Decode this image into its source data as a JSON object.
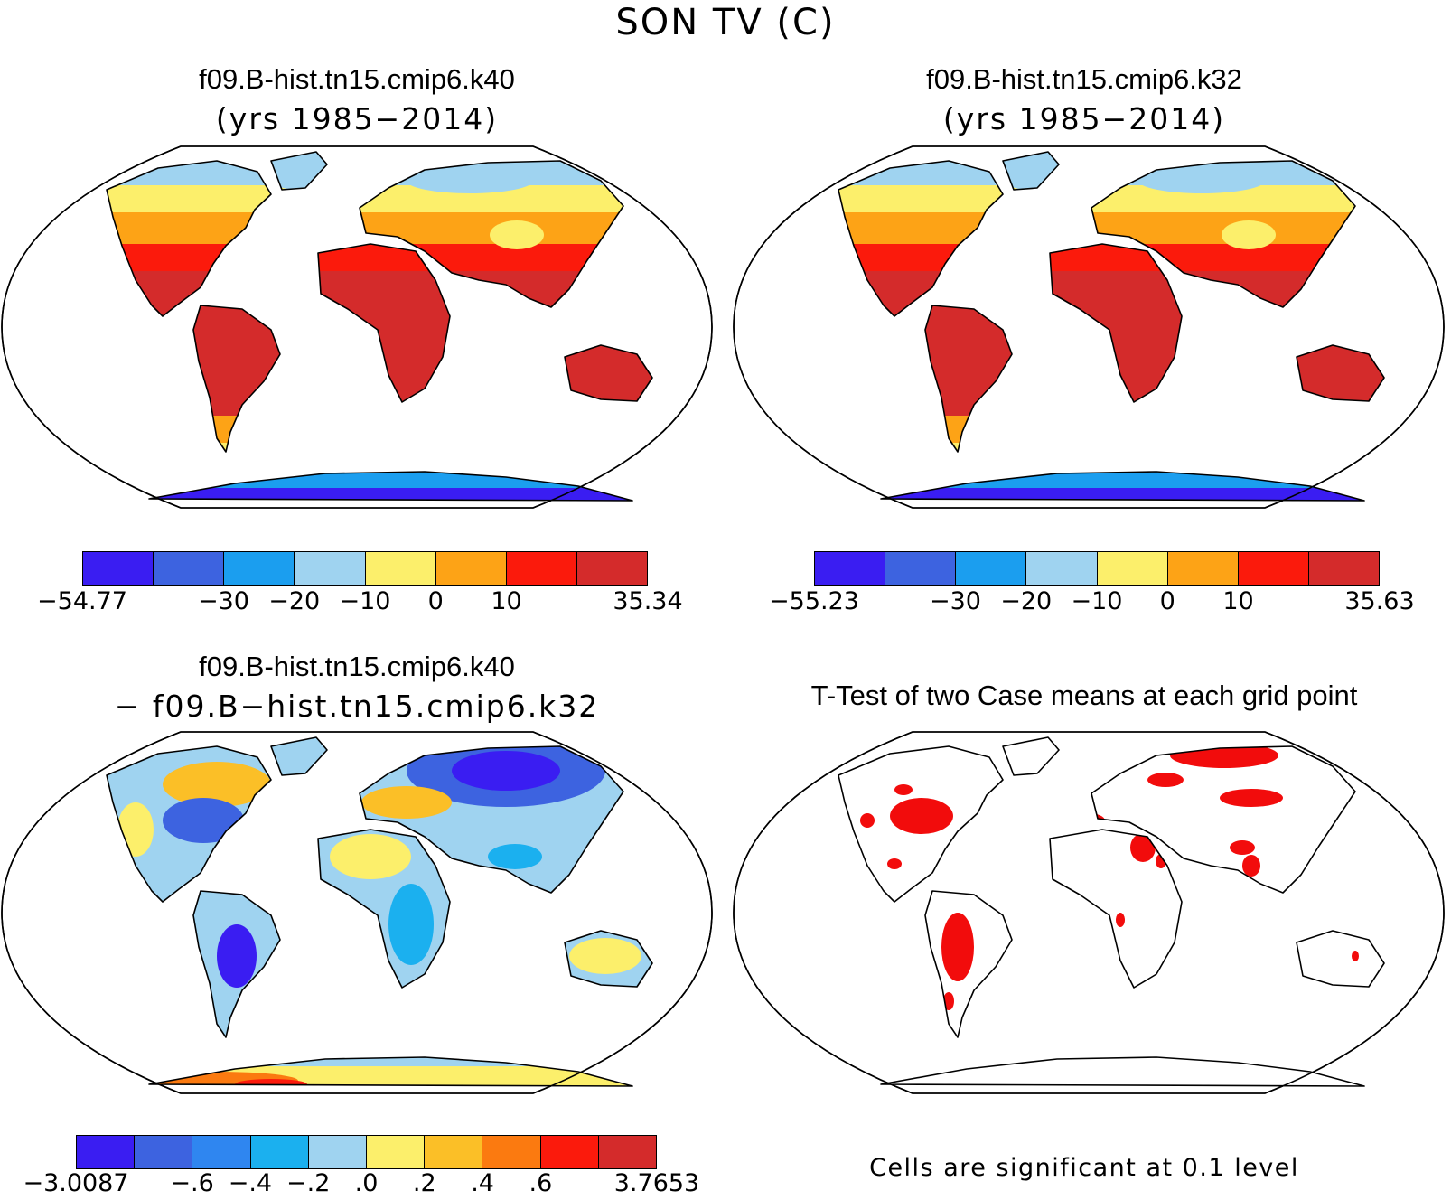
{
  "title": "SON TV (C)",
  "panels": {
    "top_left": {
      "case": "f09.B-hist.tn15.cmip6.k40",
      "years": "(yrs 1985−2014)",
      "colorbar": {
        "colors": [
          "#3a1df2",
          "#3d63e0",
          "#1b9eef",
          "#9fd3f0",
          "#fcef6b",
          "#fda316",
          "#fb1a0c",
          "#d42b2b"
        ],
        "labels": [
          "−54.77",
          "",
          "−30",
          "−20",
          "−10",
          "0",
          "10",
          "",
          "35.34"
        ]
      }
    },
    "top_right": {
      "case": "f09.B-hist.tn15.cmip6.k32",
      "years": "(yrs 1985−2014)",
      "colorbar": {
        "colors": [
          "#3a1df2",
          "#3d63e0",
          "#1b9eef",
          "#9fd3f0",
          "#fcef6b",
          "#fda316",
          "#fb1a0c",
          "#d42b2b"
        ],
        "labels": [
          "−55.23",
          "",
          "−30",
          "−20",
          "−10",
          "0",
          "10",
          "",
          "35.63"
        ]
      }
    },
    "bottom_left": {
      "case": "f09.B-hist.tn15.cmip6.k40",
      "minus_case": "− f09.B−hist.tn15.cmip6.k32",
      "colorbar": {
        "colors": [
          "#3a1df2",
          "#3d63e0",
          "#2f86f0",
          "#1bb0ef",
          "#9fd3f0",
          "#fcef6b",
          "#fbbf27",
          "#fb7a10",
          "#fb1a0c",
          "#d42b2b"
        ],
        "labels": [
          "−3.0087",
          "",
          "−.6",
          "−.4",
          "−.2",
          ".0",
          ".2",
          ".4",
          ".6",
          "",
          "3.7653"
        ]
      }
    },
    "bottom_right": {
      "title": "T-Test of two Case means at each grid point",
      "note": "Cells are significant at 0.1 level",
      "colors": {
        "significant": "#f20c0c"
      }
    }
  }
}
